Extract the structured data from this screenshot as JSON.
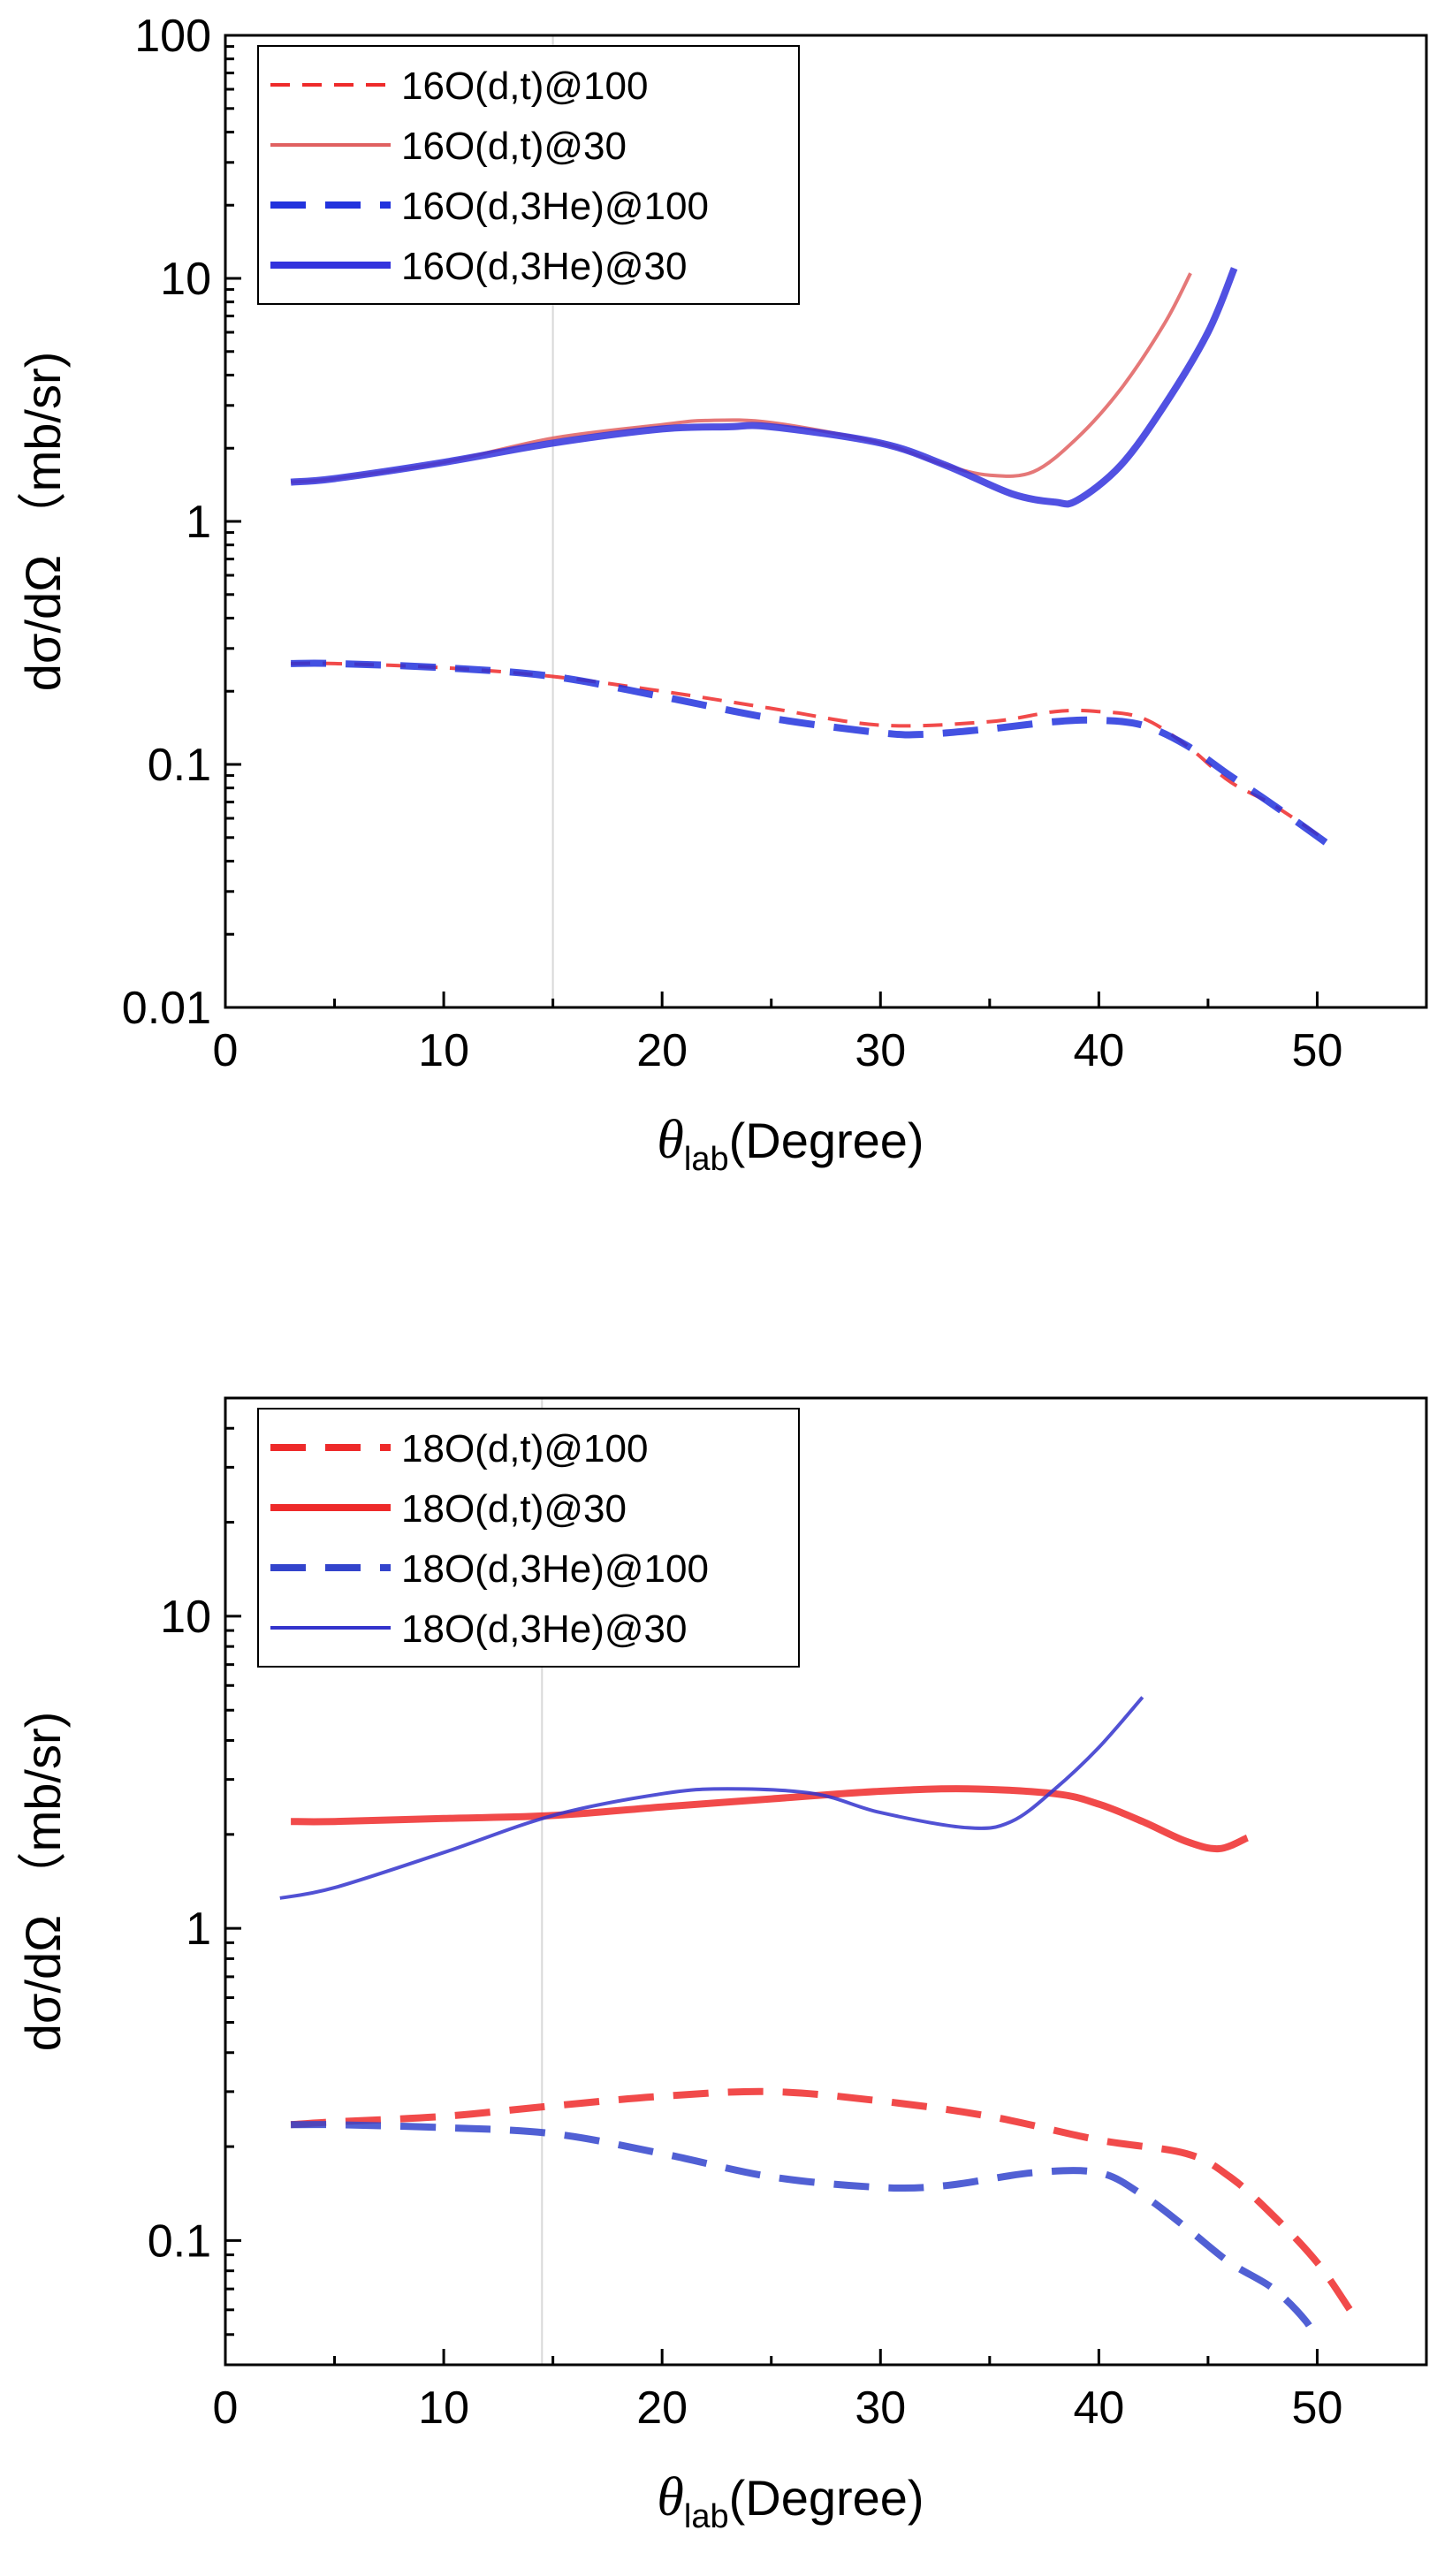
{
  "chart_data": [
    {
      "type": "line",
      "xlabel_symbol": "θ",
      "xlabel_sub": "lab",
      "xlabel_rest": "(Degree)",
      "ylabel": "dσ/dΩ （mb/sr)",
      "xlim": [
        0,
        55
      ],
      "ylim": [
        0.01,
        100
      ],
      "yscale": "log",
      "x_ticks": [
        0,
        10,
        20,
        30,
        40,
        50
      ],
      "y_ticks": [
        {
          "value": 0.01,
          "label": "0.01"
        },
        {
          "value": 0.1,
          "label": "0.1"
        },
        {
          "value": 1,
          "label": "1"
        },
        {
          "value": 10,
          "label": "10"
        },
        {
          "value": 100,
          "label": "100"
        }
      ],
      "grid": false,
      "legend_position": "top-left",
      "reference_line_x": 15,
      "series": [
        {
          "name": "16O(d,t)@100",
          "color": "#ee2a2a",
          "dash": "short-dash",
          "width": "thin",
          "x": [
            3,
            5,
            10,
            15,
            20,
            25,
            30,
            35,
            38,
            40,
            42,
            44,
            46,
            48,
            50.5
          ],
          "y": [
            0.26,
            0.26,
            0.25,
            0.23,
            0.2,
            0.17,
            0.145,
            0.15,
            0.165,
            0.165,
            0.155,
            0.12,
            0.085,
            0.068,
            0.048
          ]
        },
        {
          "name": "16O(d,t)@30",
          "color": "#e06060",
          "dash": "solid",
          "width": "thin",
          "x": [
            3,
            5,
            10,
            15,
            20,
            22,
            25,
            30,
            33,
            35,
            37,
            39,
            41,
            43,
            44.2
          ],
          "y": [
            1.45,
            1.5,
            1.75,
            2.2,
            2.5,
            2.6,
            2.55,
            2.1,
            1.7,
            1.55,
            1.6,
            2.2,
            3.5,
            6.5,
            10.5
          ]
        },
        {
          "name": "16O(d,3He)@100",
          "color": "#2233dd",
          "dash": "long-dash",
          "width": "thick",
          "x": [
            3,
            5,
            10,
            15,
            20,
            25,
            30,
            32,
            35,
            38,
            40,
            42,
            44,
            46,
            48,
            50.5
          ],
          "y": [
            0.26,
            0.26,
            0.25,
            0.23,
            0.19,
            0.155,
            0.135,
            0.133,
            0.14,
            0.15,
            0.152,
            0.145,
            0.12,
            0.09,
            0.068,
            0.047
          ]
        },
        {
          "name": "16O(d,3He)@30",
          "color": "#3333dd",
          "dash": "solid",
          "width": "thick",
          "x": [
            3,
            5,
            10,
            15,
            20,
            23,
            25,
            30,
            33,
            36,
            38,
            39,
            41,
            43,
            45,
            46.2
          ],
          "y": [
            1.45,
            1.5,
            1.75,
            2.1,
            2.4,
            2.45,
            2.45,
            2.1,
            1.7,
            1.3,
            1.2,
            1.22,
            1.7,
            3.0,
            6.0,
            11.0
          ]
        }
      ],
      "legend": {
        "entries": [
          "16O(d,t)@100",
          "16O(d,t)@30",
          "16O(d,3He)@100",
          "16O(d,3He)@30"
        ]
      }
    },
    {
      "type": "line",
      "xlabel_symbol": "θ",
      "xlabel_sub": "lab",
      "xlabel_rest": "(Degree)",
      "ylabel": "dσ/dΩ （mb/sr)",
      "xlim": [
        0,
        55
      ],
      "ylim": [
        0.04,
        50
      ],
      "yscale": "log",
      "x_ticks": [
        0,
        10,
        20,
        30,
        40,
        50
      ],
      "y_ticks": [
        {
          "value": 0.1,
          "label": "0.1"
        },
        {
          "value": 1,
          "label": "1"
        },
        {
          "value": 10,
          "label": "10"
        }
      ],
      "grid": false,
      "legend_position": "top-left",
      "reference_line_x": 14.5,
      "series": [
        {
          "name": "18O(d,t)@100",
          "color": "#ee2a2a",
          "dash": "long-dash",
          "width": "thick",
          "x": [
            3,
            5,
            10,
            15,
            20,
            25,
            30,
            35,
            40,
            44,
            46,
            48,
            50,
            51.5
          ],
          "y": [
            0.235,
            0.24,
            0.25,
            0.27,
            0.29,
            0.3,
            0.28,
            0.25,
            0.21,
            0.19,
            0.16,
            0.12,
            0.085,
            0.06
          ]
        },
        {
          "name": "18O(d,t)@30",
          "color": "#ee2a2a",
          "dash": "solid",
          "width": "thick",
          "x": [
            3,
            5,
            10,
            15,
            20,
            25,
            30,
            34,
            38,
            40,
            42,
            44,
            45.5,
            46.8
          ],
          "y": [
            2.2,
            2.2,
            2.25,
            2.3,
            2.45,
            2.6,
            2.75,
            2.8,
            2.7,
            2.5,
            2.2,
            1.9,
            1.8,
            1.95
          ]
        },
        {
          "name": "18O(d,3He)@100",
          "color": "#3344cc",
          "dash": "long-dash",
          "width": "thick",
          "x": [
            3,
            5,
            10,
            15,
            20,
            25,
            30,
            33,
            37,
            40,
            42,
            44,
            46,
            48,
            49.5,
            50
          ],
          "y": [
            0.235,
            0.235,
            0.23,
            0.22,
            0.19,
            0.16,
            0.148,
            0.15,
            0.165,
            0.165,
            0.14,
            0.11,
            0.085,
            0.07,
            0.055,
            0.047
          ]
        },
        {
          "name": "18O(d,3He)@30",
          "color": "#3333cc",
          "dash": "solid",
          "width": "thin",
          "x": [
            2.5,
            5,
            10,
            15,
            20,
            23,
            27,
            30,
            34,
            36,
            38,
            40,
            42
          ],
          "y": [
            1.25,
            1.35,
            1.75,
            2.3,
            2.7,
            2.8,
            2.7,
            2.35,
            2.1,
            2.2,
            2.8,
            3.8,
            5.5
          ]
        }
      ],
      "legend": {
        "entries": [
          "18O(d,t)@100",
          "18O(d,t)@30",
          "18O(d,3He)@100",
          "18O(d,3He)@30"
        ]
      }
    }
  ]
}
